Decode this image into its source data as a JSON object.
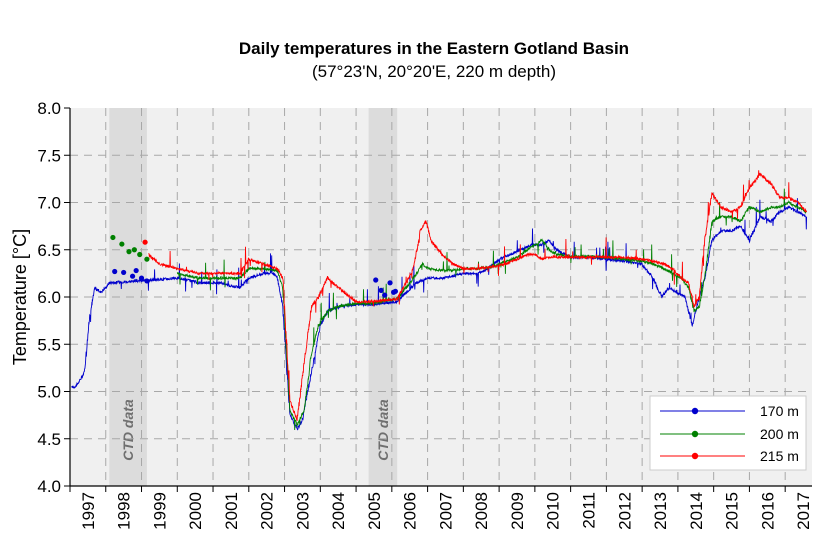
{
  "chart_data": {
    "type": "line",
    "title": "Daily temperatures in the Eastern Gotland Basin",
    "subtitle": "(57°23'N, 20°20'E, 220 m depth)",
    "ylabel": "Temperature [°C]",
    "xlabel": "",
    "xlim": [
      1997.0,
      2017.75
    ],
    "ylim": [
      4.0,
      8.0
    ],
    "x_tick_labels": [
      "1997",
      "1998",
      "1999",
      "2000",
      "2001",
      "2002",
      "2003",
      "2004",
      "2005",
      "2006",
      "2007",
      "2008",
      "2009",
      "2010",
      "2011",
      "2012",
      "2013",
      "2014",
      "2015",
      "2016",
      "2017"
    ],
    "y_ticks": [
      4.0,
      4.5,
      5.0,
      5.5,
      6.0,
      6.5,
      7.0,
      7.5,
      8.0
    ],
    "y_tick_labels": [
      "4.0",
      "4.5",
      "5.0",
      "5.5",
      "6.0",
      "6.5",
      "7.0",
      "7.5",
      "8.0"
    ],
    "grid": true,
    "legend_position": "bottom-right",
    "shaded_periods": [
      {
        "label": "CTD data",
        "start": 1998.1,
        "end": 1999.15
      },
      {
        "label": "CTD data",
        "start": 2005.35,
        "end": 2006.15
      }
    ],
    "series": [
      {
        "name": "170 m",
        "color": "#0000cc",
        "x": [
          1997.05,
          1997.15,
          1997.25,
          1997.4,
          1997.55,
          1997.7,
          1997.85,
          1998.0,
          1998.1,
          2000.05,
          2000.6,
          2001.2,
          2001.45,
          2001.75,
          2002.0,
          2002.4,
          2002.7,
          2002.8,
          2002.95,
          2003.15,
          2003.35,
          2003.5,
          2003.7,
          2003.85,
          2004.0,
          2004.2,
          2004.4,
          2004.6,
          2005.0,
          2005.4,
          2006.15,
          2006.4,
          2006.7,
          2006.85,
          2007.05,
          2007.4,
          2007.7,
          2008.0,
          2008.4,
          2008.7,
          2009.0,
          2009.3,
          2009.6,
          2009.9,
          2010.2,
          2010.4,
          2010.6,
          2011.0,
          2011.5,
          2012.0,
          2012.5,
          2013.0,
          2013.3,
          2013.55,
          2013.75,
          2013.95,
          2014.2,
          2014.4,
          2014.6,
          2014.75,
          2014.95,
          2015.2,
          2015.5,
          2015.75,
          2016.0,
          2016.3,
          2016.6,
          2016.85,
          2017.1,
          2017.35,
          2017.6
        ],
        "y": [
          5.05,
          5.05,
          5.1,
          5.2,
          5.8,
          6.1,
          6.05,
          6.1,
          6.15,
          6.2,
          6.15,
          6.15,
          6.12,
          6.1,
          6.2,
          6.25,
          6.25,
          6.2,
          5.9,
          4.75,
          4.6,
          4.7,
          5.1,
          5.4,
          5.7,
          5.85,
          5.88,
          5.9,
          5.92,
          5.92,
          5.95,
          6.05,
          6.15,
          6.18,
          6.2,
          6.2,
          6.22,
          6.25,
          6.25,
          6.3,
          6.4,
          6.45,
          6.5,
          6.55,
          6.55,
          6.6,
          6.5,
          6.42,
          6.42,
          6.4,
          6.38,
          6.35,
          6.2,
          6.0,
          6.1,
          6.05,
          6.0,
          5.7,
          6.0,
          6.2,
          6.6,
          6.7,
          6.7,
          6.75,
          6.6,
          6.85,
          6.8,
          6.9,
          6.95,
          6.9,
          6.85
        ]
      },
      {
        "name": "200 m",
        "color": "#008000",
        "x": [
          2000.0,
          2000.6,
          2001.2,
          2001.75,
          2002.0,
          2002.4,
          2002.8,
          2002.95,
          2003.15,
          2003.35,
          2003.55,
          2003.75,
          2003.95,
          2004.2,
          2004.5,
          2005.0,
          2005.4,
          2006.15,
          2006.4,
          2006.7,
          2006.85,
          2007.05,
          2007.4,
          2007.7,
          2008.0,
          2008.4,
          2008.8,
          2009.2,
          2009.5,
          2009.8,
          2010.0,
          2010.2,
          2010.4,
          2010.6,
          2011.0,
          2011.5,
          2012.0,
          2012.5,
          2013.0,
          2013.3,
          2013.6,
          2013.85,
          2014.1,
          2014.3,
          2014.45,
          2014.6,
          2014.75,
          2014.95,
          2015.2,
          2015.5,
          2015.75,
          2016.0,
          2016.3,
          2016.6,
          2016.85,
          2017.1,
          2017.35,
          2017.6
        ],
        "y": [
          6.25,
          6.2,
          6.2,
          6.2,
          6.3,
          6.3,
          6.28,
          6.1,
          4.8,
          4.65,
          4.8,
          5.4,
          5.7,
          5.85,
          5.9,
          5.93,
          5.93,
          5.98,
          6.1,
          6.25,
          6.35,
          6.3,
          6.28,
          6.28,
          6.3,
          6.3,
          6.32,
          6.38,
          6.42,
          6.5,
          6.55,
          6.6,
          6.5,
          6.45,
          6.43,
          6.43,
          6.42,
          6.4,
          6.38,
          6.35,
          6.3,
          6.25,
          6.2,
          6.1,
          5.85,
          5.9,
          6.2,
          6.8,
          6.85,
          6.85,
          6.8,
          6.95,
          6.9,
          6.95,
          6.95,
          7.0,
          6.95,
          6.9
        ]
      },
      {
        "name": "215 m",
        "color": "#ff0000",
        "x": [
          1999.2,
          1999.5,
          2000.0,
          2000.6,
          2001.2,
          2001.75,
          2002.0,
          2002.4,
          2002.8,
          2002.95,
          2003.15,
          2003.35,
          2003.55,
          2003.75,
          2003.95,
          2004.2,
          2004.5,
          2005.0,
          2005.4,
          2006.15,
          2006.4,
          2006.6,
          2006.8,
          2006.95,
          2007.1,
          2007.4,
          2007.7,
          2008.0,
          2008.4,
          2008.8,
          2009.2,
          2009.5,
          2009.8,
          2010.0,
          2010.2,
          2010.4,
          2010.6,
          2011.0,
          2011.5,
          2012.0,
          2012.5,
          2013.0,
          2013.3,
          2013.6,
          2013.85,
          2014.1,
          2014.3,
          2014.45,
          2014.6,
          2014.75,
          2014.95,
          2015.2,
          2015.5,
          2015.75,
          2016.0,
          2016.3,
          2016.6,
          2016.85,
          2017.1,
          2017.35,
          2017.6
        ],
        "y": [
          6.45,
          6.35,
          6.3,
          6.25,
          6.25,
          6.25,
          6.4,
          6.35,
          6.3,
          6.2,
          4.9,
          4.7,
          5.3,
          5.9,
          6.0,
          6.2,
          6.1,
          5.95,
          5.95,
          5.98,
          6.15,
          6.3,
          6.7,
          6.8,
          6.6,
          6.45,
          6.35,
          6.3,
          6.3,
          6.32,
          6.35,
          6.4,
          6.45,
          6.45,
          6.4,
          6.42,
          6.42,
          6.42,
          6.42,
          6.42,
          6.42,
          6.4,
          6.38,
          6.35,
          6.3,
          6.2,
          6.15,
          5.9,
          6.0,
          6.6,
          7.1,
          6.95,
          6.9,
          6.95,
          7.15,
          7.3,
          7.2,
          7.05,
          7.05,
          7.0,
          6.9
        ]
      }
    ],
    "ctd_points": [
      {
        "series": "170 m",
        "color": "#0000cc",
        "x": [
          1998.25,
          1998.5,
          1998.75,
          1998.85,
          1999.0,
          1999.15
        ],
        "y": [
          6.27,
          6.26,
          6.22,
          6.28,
          6.2,
          6.17
        ]
      },
      {
        "series": "200 m",
        "color": "#008000",
        "x": [
          1998.2,
          1998.45,
          1998.65,
          1998.8,
          1998.95,
          1999.15
        ],
        "y": [
          6.63,
          6.56,
          6.48,
          6.5,
          6.45,
          6.4
        ]
      },
      {
        "series": "215 m",
        "color": "#ff0000",
        "x": [
          1999.1
        ],
        "y": [
          6.58
        ]
      },
      {
        "series": "170 m",
        "color": "#0000cc",
        "x": [
          2005.55,
          2005.7,
          2005.8,
          2005.95,
          2006.05,
          2006.1
        ],
        "y": [
          6.18,
          6.07,
          6.02,
          6.15,
          6.05,
          6.06
        ]
      }
    ]
  }
}
